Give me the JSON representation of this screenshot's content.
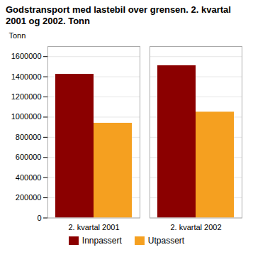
{
  "chart_data": {
    "type": "bar",
    "title": "Godstransport med lastebil over grensen. 2. kvartal\n2001 og 2002. Tonn",
    "y_label": "Tonn",
    "categories": [
      "2. kvartal 2001",
      "2. kvartal 2002"
    ],
    "series": [
      {
        "name": "Innpassert",
        "color": "#8B0000",
        "values": [
          1425000,
          1510000
        ]
      },
      {
        "name": "Utpassert",
        "color": "#F5A020",
        "values": [
          940000,
          1050000
        ]
      }
    ],
    "ylim": [
      0,
      1700000
    ],
    "yticks": [
      0,
      200000,
      400000,
      600000,
      800000,
      1000000,
      1200000,
      1400000,
      1600000
    ],
    "grid": true,
    "legend": "bottom"
  }
}
